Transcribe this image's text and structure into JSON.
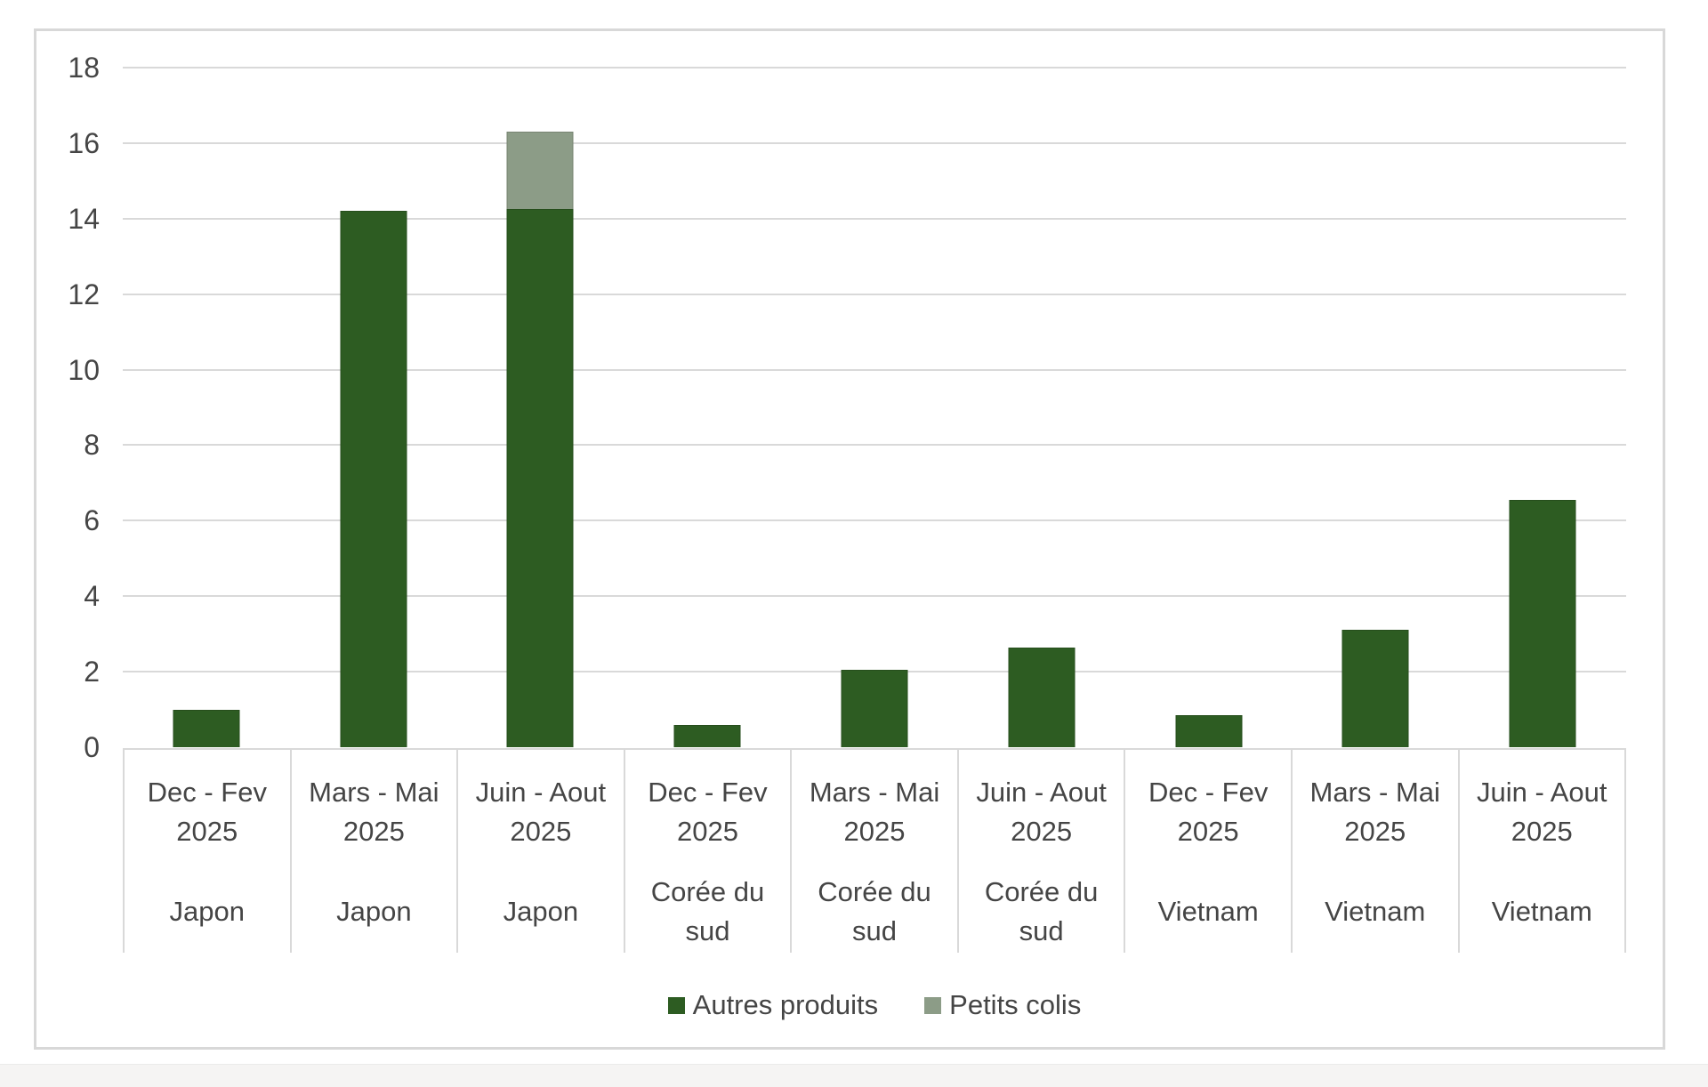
{
  "page": {
    "background": "#ffffff",
    "bottom_strip_color": "#f5f4f3"
  },
  "chart_data": {
    "type": "bar",
    "stacked": true,
    "title": "",
    "xlabel": "",
    "ylabel": "",
    "ylim": [
      0,
      18
    ],
    "ytick_step": 2,
    "grid": true,
    "legend_position": "bottom",
    "categories": [
      {
        "period": "Dec - Fev",
        "year": "2025",
        "group": "Japon"
      },
      {
        "period": "Mars - Mai",
        "year": "2025",
        "group": "Japon"
      },
      {
        "period": "Juin - Aout",
        "year": "2025",
        "group": "Japon"
      },
      {
        "period": "Dec - Fev",
        "year": "2025",
        "group": "Corée du sud"
      },
      {
        "period": "Mars - Mai",
        "year": "2025",
        "group": "Corée du sud"
      },
      {
        "period": "Juin - Aout",
        "year": "2025",
        "group": "Corée du sud"
      },
      {
        "period": "Dec - Fev",
        "year": "2025",
        "group": "Vietnam"
      },
      {
        "period": "Mars - Mai",
        "year": "2025",
        "group": "Vietnam"
      },
      {
        "period": "Juin - Aout",
        "year": "2025",
        "group": "Vietnam"
      }
    ],
    "series": [
      {
        "name": "Autres produits",
        "color": "#2d5c22",
        "values": [
          1.0,
          14.2,
          14.25,
          0.6,
          2.05,
          2.65,
          0.85,
          3.1,
          6.55
        ]
      },
      {
        "name": "Petits colis",
        "color": "#8c9c87",
        "values": [
          0,
          0,
          2.05,
          0,
          0,
          0,
          0,
          0,
          0
        ]
      }
    ],
    "colors": {
      "gridline": "#d9d9d9",
      "axis_text": "#454545",
      "frame_border": "#d8d8d8"
    }
  }
}
